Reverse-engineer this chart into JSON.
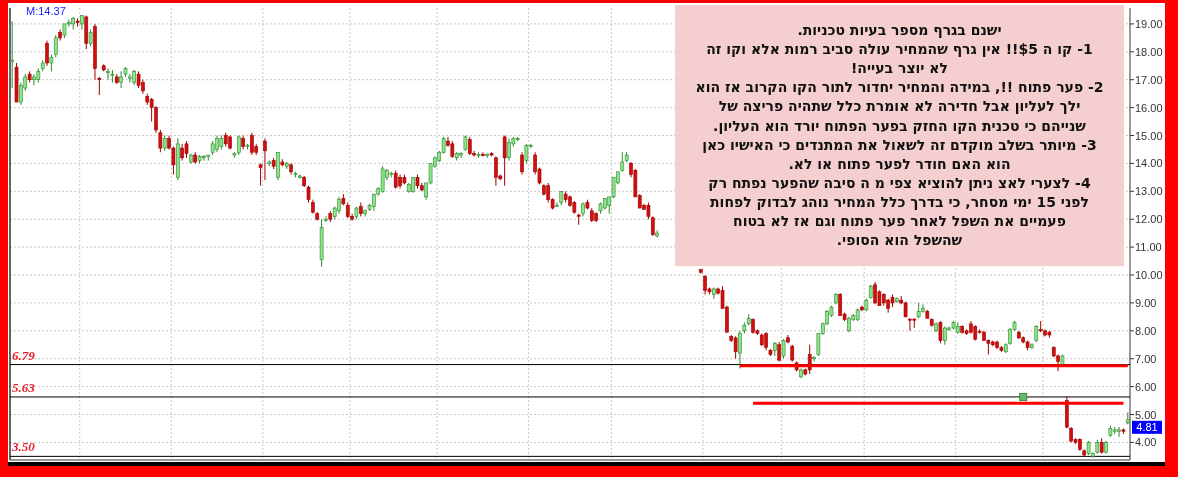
{
  "chart_data": {
    "type": "candlestick",
    "categories": [
      null,
      null,
      null,
      null,
      null,
      null,
      null,
      null,
      null,
      null,
      null,
      null,
      null,
      null,
      null,
      null,
      null,
      null,
      null,
      null,
      null,
      null,
      null,
      null,
      null,
      null,
      null,
      null,
      null,
      null,
      null,
      null,
      null,
      null,
      null,
      null,
      null,
      null,
      null,
      null,
      null,
      null,
      null,
      null,
      null,
      null,
      null,
      null,
      null,
      null,
      null,
      null,
      null,
      null,
      null,
      null,
      null,
      null,
      null,
      null,
      null,
      null,
      null,
      null,
      null,
      null,
      null,
      null,
      null,
      null,
      null,
      null,
      null,
      null,
      null,
      null,
      null,
      null,
      null,
      null,
      null,
      null,
      null,
      null,
      null,
      null,
      null,
      null,
      null,
      null,
      null,
      null,
      null,
      null,
      null,
      null,
      null,
      null,
      null,
      null,
      null,
      null,
      null,
      null,
      null,
      null,
      null,
      null,
      null,
      null,
      null,
      null,
      null,
      null,
      null,
      null,
      null,
      null,
      null,
      null,
      null,
      null,
      null,
      null,
      null,
      null,
      null,
      null,
      null,
      null,
      null,
      null,
      null,
      null,
      null,
      null,
      null,
      null,
      null,
      null,
      null,
      null,
      null,
      null,
      null,
      null,
      null,
      null,
      null,
      null,
      null,
      null,
      null,
      null,
      null,
      null,
      null,
      null,
      null,
      null,
      null,
      null,
      null,
      null,
      null,
      null,
      null,
      null,
      null,
      null,
      null,
      null,
      null,
      null,
      null,
      null,
      null,
      null,
      null,
      null,
      null,
      null,
      null,
      null,
      null,
      null,
      null,
      null,
      null,
      null,
      null,
      null,
      null,
      null,
      null,
      null,
      null,
      null,
      null,
      null,
      null,
      null,
      null,
      null,
      null,
      null,
      null,
      null,
      null,
      null,
      null,
      null,
      null,
      null,
      null,
      null,
      null,
      null,
      null,
      null,
      null,
      null,
      null,
      null,
      null,
      null,
      null,
      null,
      null,
      null,
      null,
      null,
      null,
      null,
      null,
      null,
      null,
      null,
      null,
      null,
      null,
      null,
      null,
      null,
      null,
      null,
      null,
      null,
      null,
      null,
      null,
      null,
      null,
      null,
      null,
      null,
      null
    ],
    "ohlc": [
      [
        17.7,
        19.1,
        16.7,
        17.7
      ],
      [
        17.45,
        17.6,
        16.2,
        16.2
      ],
      [
        16.2,
        16.9,
        16.1,
        16.8
      ],
      [
        16.7,
        17.2,
        16.6,
        17.1
      ],
      [
        17.2,
        17.3,
        16.9,
        17.0
      ],
      [
        17.0,
        17.2,
        16.8,
        17.1
      ],
      [
        17.0,
        17.4,
        16.9,
        17.3
      ],
      [
        17.4,
        17.7,
        17.3,
        17.6
      ],
      [
        18.3,
        18.4,
        17.5,
        17.6
      ],
      [
        17.6,
        17.9,
        17.3,
        17.8
      ],
      [
        17.9,
        18.6,
        17.8,
        18.5
      ],
      [
        18.7,
        18.8,
        18.4,
        18.5
      ],
      [
        18.6,
        19.0,
        18.5,
        19.0
      ],
      [
        19.0,
        19.15,
        18.9,
        19.05
      ],
      [
        19.0,
        19.25,
        18.8,
        19.2
      ],
      [
        19.1,
        19.2,
        18.9,
        19.05
      ],
      [
        19.0,
        19.3,
        18.8,
        19.3
      ],
      [
        19.25,
        19.3,
        18.1,
        18.3
      ],
      [
        18.3,
        18.8,
        18.2,
        18.7
      ],
      [
        18.9,
        19.0,
        17.0,
        17.4
      ],
      [
        17.05,
        17.1,
        16.45,
        17.0
      ],
      [
        17.5,
        17.55,
        17.3,
        17.35
      ],
      [
        17.25,
        17.4,
        17.0,
        17.3
      ],
      [
        17.15,
        17.35,
        16.9,
        17.2
      ],
      [
        17.1,
        17.2,
        16.85,
        16.9
      ],
      [
        16.9,
        17.3,
        16.7,
        17.1
      ],
      [
        17.2,
        17.45,
        17.1,
        17.4
      ],
      [
        17.05,
        17.2,
        16.9,
        17.1
      ],
      [
        16.9,
        17.35,
        16.8,
        17.3
      ],
      [
        17.2,
        17.3,
        16.7,
        16.8
      ],
      [
        16.9,
        17.0,
        16.5,
        16.6
      ],
      [
        16.4,
        16.5,
        16.1,
        16.2
      ],
      [
        16.3,
        16.35,
        15.5,
        16.0
      ],
      [
        16.0,
        16.05,
        15.1,
        15.2
      ],
      [
        15.1,
        15.2,
        14.4,
        14.55
      ],
      [
        14.55,
        15.0,
        14.45,
        14.9
      ],
      [
        14.9,
        15.0,
        14.5,
        14.55
      ],
      [
        14.55,
        14.6,
        13.6,
        13.95
      ],
      [
        13.5,
        14.9,
        13.4,
        14.7
      ],
      [
        14.55,
        14.7,
        14.1,
        14.2
      ],
      [
        14.7,
        14.8,
        14.2,
        14.35
      ],
      [
        14.05,
        14.35,
        14.0,
        14.3
      ],
      [
        14.3,
        14.4,
        14.0,
        14.05
      ],
      [
        14.1,
        14.3,
        14.0,
        14.25
      ],
      [
        14.2,
        14.3,
        14.1,
        14.25
      ],
      [
        14.25,
        14.3,
        14.1,
        14.3
      ],
      [
        14.4,
        14.8,
        14.3,
        14.7
      ],
      [
        14.5,
        15.0,
        14.4,
        14.9
      ],
      [
        14.6,
        15.0,
        14.5,
        14.9
      ],
      [
        15.0,
        15.1,
        14.6,
        14.7
      ],
      [
        14.95,
        15.0,
        14.5,
        14.55
      ],
      [
        14.3,
        14.4,
        14.2,
        14.35
      ],
      [
        14.4,
        15.0,
        14.3,
        14.95
      ],
      [
        14.9,
        15.0,
        14.5,
        14.6
      ],
      [
        14.6,
        14.7,
        14.5,
        14.65
      ],
      [
        15.0,
        15.1,
        14.3,
        14.4
      ],
      [
        14.6,
        14.7,
        14.3,
        14.4
      ],
      [
        13.95,
        14.0,
        13.2,
        13.85
      ],
      [
        14.8,
        14.9,
        13.4,
        14.45
      ],
      [
        14.0,
        14.1,
        13.9,
        14.05
      ],
      [
        14.1,
        14.2,
        13.8,
        13.9
      ],
      [
        13.5,
        14.4,
        13.4,
        14.4
      ],
      [
        14.05,
        14.15,
        13.9,
        13.95
      ],
      [
        13.9,
        14.05,
        13.8,
        14.0
      ],
      [
        13.95,
        14.0,
        13.6,
        13.7
      ],
      [
        13.6,
        13.7,
        13.5,
        13.65
      ],
      [
        13.5,
        13.6,
        13.45,
        13.55
      ],
      [
        13.5,
        13.55,
        13.15,
        13.2
      ],
      [
        13.15,
        13.2,
        12.6,
        12.7
      ],
      [
        12.6,
        12.7,
        12.2,
        12.25
      ],
      [
        12.2,
        12.25,
        11.95,
        12.0
      ],
      [
        10.55,
        12.0,
        10.3,
        11.7
      ],
      [
        11.95,
        12.1,
        11.9,
        12.0
      ],
      [
        12.2,
        12.3,
        11.9,
        12.0
      ],
      [
        12.1,
        12.45,
        12.0,
        12.4
      ],
      [
        12.3,
        12.8,
        12.2,
        12.7
      ],
      [
        12.75,
        12.9,
        12.5,
        12.55
      ],
      [
        12.5,
        12.6,
        12.05,
        12.1
      ],
      [
        12.1,
        12.2,
        11.95,
        12.0
      ],
      [
        12.1,
        12.45,
        12.0,
        12.4
      ],
      [
        12.45,
        12.6,
        12.1,
        12.2
      ],
      [
        12.2,
        12.35,
        12.1,
        12.3
      ],
      [
        12.35,
        12.55,
        12.3,
        12.5
      ],
      [
        12.45,
        12.9,
        12.3,
        12.9
      ],
      [
        12.9,
        13.15,
        12.85,
        13.1
      ],
      [
        13.0,
        13.9,
        12.95,
        13.8
      ],
      [
        13.5,
        13.8,
        13.4,
        13.75
      ],
      [
        13.6,
        13.7,
        13.5,
        13.65
      ],
      [
        13.65,
        13.75,
        13.1,
        13.15
      ],
      [
        13.5,
        13.6,
        13.1,
        13.2
      ],
      [
        13.5,
        13.6,
        13.25,
        13.3
      ],
      [
        13.0,
        13.3,
        12.95,
        13.25
      ],
      [
        13.0,
        13.5,
        12.95,
        13.5
      ],
      [
        13.5,
        13.6,
        13.1,
        13.2
      ],
      [
        13.2,
        13.3,
        13.0,
        13.05
      ],
      [
        12.8,
        13.3,
        12.7,
        13.3
      ],
      [
        13.3,
        14.0,
        13.25,
        14.0
      ],
      [
        13.9,
        14.25,
        13.85,
        14.2
      ],
      [
        14.1,
        14.45,
        14.05,
        14.4
      ],
      [
        14.4,
        14.95,
        14.35,
        14.9
      ],
      [
        14.8,
        14.95,
        14.6,
        14.65
      ],
      [
        14.7,
        14.8,
        14.2,
        14.25
      ],
      [
        14.2,
        14.4,
        14.1,
        14.35
      ],
      [
        14.3,
        14.4,
        14.2,
        14.35
      ],
      [
        14.5,
        15.0,
        14.45,
        14.95
      ],
      [
        14.85,
        14.95,
        14.3,
        14.35
      ],
      [
        14.35,
        14.45,
        14.25,
        14.3
      ],
      [
        14.28,
        14.4,
        14.2,
        14.32
      ],
      [
        14.32,
        14.4,
        14.25,
        14.28
      ],
      [
        14.28,
        14.35,
        14.2,
        14.33
      ],
      [
        14.35,
        14.4,
        14.25,
        14.3
      ],
      [
        14.2,
        14.25,
        13.2,
        13.5
      ],
      [
        13.55,
        13.6,
        13.4,
        13.45
      ],
      [
        14.95,
        15.0,
        13.2,
        14.2
      ],
      [
        14.2,
        14.9,
        14.1,
        14.75
      ],
      [
        14.7,
        14.95,
        14.6,
        14.9
      ],
      [
        14.85,
        14.95,
        14.8,
        14.9
      ],
      [
        14.3,
        14.4,
        13.6,
        13.7
      ],
      [
        14.1,
        14.7,
        14.0,
        14.65
      ],
      [
        14.6,
        14.7,
        14.55,
        14.65
      ],
      [
        14.3,
        14.4,
        13.6,
        13.7
      ],
      [
        13.8,
        13.85,
        13.25,
        13.3
      ],
      [
        13.2,
        13.25,
        12.85,
        12.9
      ],
      [
        13.2,
        13.3,
        12.6,
        12.7
      ],
      [
        12.7,
        12.75,
        12.35,
        12.4
      ],
      [
        12.5,
        12.6,
        12.45,
        12.5
      ],
      [
        12.6,
        13.0,
        12.5,
        13.0
      ],
      [
        12.9,
        13.0,
        12.6,
        12.7
      ],
      [
        12.8,
        12.85,
        12.45,
        12.5
      ],
      [
        12.6,
        12.65,
        12.2,
        12.25
      ],
      [
        12.15,
        12.2,
        11.8,
        12.1
      ],
      [
        12.2,
        12.6,
        12.1,
        12.55
      ],
      [
        12.6,
        12.7,
        12.35,
        12.4
      ],
      [
        12.3,
        12.4,
        11.9,
        11.95
      ],
      [
        12.2,
        12.25,
        11.9,
        11.95
      ],
      [
        12.3,
        12.6,
        12.2,
        12.55
      ],
      [
        12.4,
        12.75,
        12.35,
        12.75
      ],
      [
        12.5,
        12.8,
        12.2,
        12.8
      ],
      [
        12.8,
        13.5,
        12.75,
        13.5
      ],
      [
        13.3,
        13.7,
        13.25,
        13.7
      ],
      [
        13.75,
        14.4,
        13.7,
        14.05
      ],
      [
        14.1,
        14.4,
        14.05,
        14.3
      ],
      [
        14.0,
        14.05,
        13.5,
        13.6
      ],
      [
        13.75,
        13.8,
        12.8,
        12.8
      ],
      [
        12.85,
        12.9,
        12.4,
        12.4
      ],
      [
        12.5,
        12.55,
        12.35,
        12.35
      ],
      [
        12.5,
        12.6,
        12.0,
        12.1
      ],
      [
        12.05,
        12.1,
        11.4,
        11.45
      ],
      [
        11.4,
        11.6,
        11.35,
        11.5
      ],
      null,
      null,
      null,
      null,
      null,
      null,
      null,
      null,
      null,
      [
        10.2,
        10.2,
        10.05,
        10.1
      ],
      [
        9.95,
        10.0,
        9.3,
        9.45
      ],
      [
        9.5,
        9.55,
        9.3,
        9.4
      ],
      [
        9.3,
        9.55,
        9.15,
        9.5
      ],
      [
        9.5,
        9.55,
        9.3,
        9.35
      ],
      [
        9.45,
        9.6,
        8.8,
        8.8
      ],
      [
        8.85,
        8.9,
        7.95,
        7.95
      ],
      [
        7.8,
        7.85,
        7.6,
        7.65
      ],
      [
        7.75,
        7.8,
        7.0,
        7.25
      ],
      [
        7.2,
        8.0,
        6.65,
        7.9
      ],
      [
        8.0,
        8.3,
        7.9,
        8.2
      ],
      [
        8.25,
        8.6,
        8.2,
        8.45
      ],
      [
        8.4,
        8.45,
        7.9,
        7.95
      ],
      [
        8.0,
        8.05,
        7.85,
        7.9
      ],
      [
        7.85,
        7.9,
        7.45,
        7.5
      ],
      [
        7.9,
        7.95,
        7.3,
        7.4
      ],
      [
        7.3,
        7.35,
        7.1,
        7.15
      ],
      [
        7.3,
        7.6,
        7.1,
        7.55
      ],
      [
        7.5,
        7.6,
        6.9,
        6.95
      ],
      [
        7.1,
        7.7,
        7.0,
        7.65
      ],
      [
        7.75,
        7.85,
        7.55,
        7.6
      ],
      [
        7.45,
        7.5,
        6.9,
        6.95
      ],
      [
        6.85,
        6.9,
        6.55,
        6.6
      ],
      [
        6.35,
        6.65,
        6.3,
        6.6
      ],
      [
        6.6,
        6.65,
        6.4,
        6.45
      ],
      [
        7.15,
        7.5,
        6.45,
        6.6
      ],
      [
        7.0,
        7.1,
        6.9,
        7.05
      ],
      [
        7.15,
        7.9,
        7.1,
        7.9
      ],
      [
        7.9,
        8.3,
        7.85,
        8.25
      ],
      [
        8.25,
        8.75,
        8.2,
        8.7
      ],
      [
        8.55,
        8.9,
        8.5,
        8.85
      ],
      [
        9.0,
        9.35,
        8.95,
        9.3
      ],
      [
        9.3,
        9.35,
        8.55,
        8.55
      ],
      [
        8.6,
        8.65,
        8.35,
        8.4
      ],
      [
        8.0,
        8.5,
        7.95,
        8.45
      ],
      [
        8.4,
        8.6,
        8.35,
        8.55
      ],
      [
        8.4,
        8.8,
        8.35,
        8.75
      ],
      [
        8.85,
        8.9,
        8.7,
        8.75
      ],
      [
        8.75,
        9.15,
        8.7,
        9.1
      ],
      [
        9.2,
        9.65,
        9.15,
        9.6
      ],
      [
        9.65,
        9.75,
        8.95,
        9.0
      ],
      [
        9.4,
        9.45,
        8.9,
        8.9
      ],
      [
        9.3,
        9.35,
        8.9,
        9.0
      ],
      [
        9.1,
        9.15,
        8.65,
        8.8
      ],
      [
        9.2,
        9.3,
        8.85,
        9.0
      ],
      [
        9.05,
        9.2,
        9.0,
        9.15
      ],
      [
        9.1,
        9.25,
        8.95,
        9.0
      ],
      [
        9.0,
        9.05,
        8.5,
        8.5
      ],
      [
        8.42,
        8.45,
        8.0,
        8.38
      ],
      [
        8.42,
        8.45,
        8.1,
        8.38
      ],
      [
        8.5,
        9.0,
        8.45,
        8.7
      ],
      [
        8.7,
        8.95,
        8.65,
        8.8
      ],
      [
        8.7,
        8.75,
        8.45,
        8.45
      ],
      [
        8.4,
        8.45,
        8.15,
        8.2
      ],
      [
        8.0,
        8.3,
        7.95,
        8.25
      ],
      [
        8.3,
        8.35,
        7.55,
        7.65
      ],
      [
        7.65,
        8.15,
        7.5,
        8.1
      ],
      [
        8.05,
        8.15,
        8.0,
        8.1
      ],
      [
        8.1,
        8.35,
        8.05,
        8.3
      ],
      [
        7.95,
        8.3,
        7.9,
        8.15
      ],
      [
        8.15,
        8.2,
        7.9,
        7.95
      ],
      [
        8.0,
        8.05,
        7.85,
        7.9
      ],
      [
        8.25,
        8.35,
        7.9,
        7.95
      ],
      [
        8.15,
        8.2,
        7.65,
        7.7
      ],
      [
        7.98,
        8.05,
        7.9,
        7.95
      ],
      [
        7.95,
        8.0,
        7.65,
        7.65
      ],
      [
        7.65,
        7.7,
        7.15,
        7.55
      ],
      [
        7.6,
        7.65,
        7.45,
        7.5
      ],
      [
        7.6,
        7.65,
        7.35,
        7.4
      ],
      [
        7.4,
        7.45,
        7.25,
        7.3
      ],
      [
        7.25,
        7.55,
        7.2,
        7.5
      ],
      [
        7.55,
        8.1,
        7.5,
        8.05
      ],
      [
        8.05,
        8.35,
        8.0,
        8.3
      ],
      [
        7.95,
        8.0,
        7.7,
        7.75
      ],
      [
        7.75,
        7.8,
        7.55,
        7.6
      ],
      [
        7.6,
        7.65,
        7.3,
        7.4
      ],
      [
        7.4,
        7.55,
        7.35,
        7.5
      ],
      [
        7.65,
        8.2,
        7.6,
        8.15
      ],
      [
        8.05,
        8.35,
        7.95,
        8.0
      ],
      [
        8.0,
        8.05,
        7.8,
        7.85
      ],
      [
        7.95,
        8.0,
        7.75,
        7.85
      ],
      [
        7.4,
        7.45,
        7.05,
        7.1
      ],
      [
        7.1,
        7.15,
        6.55,
        6.9
      ],
      [
        6.8,
        7.15,
        6.75,
        7.1
      ],
      [
        5.5,
        5.65,
        4.5,
        4.55
      ],
      [
        4.5,
        4.55,
        4.0,
        4.05
      ],
      [
        4.1,
        4.15,
        3.95,
        4.0
      ],
      [
        4.1,
        4.15,
        3.7,
        3.75
      ],
      [
        3.7,
        3.75,
        3.5,
        3.55
      ],
      [
        3.6,
        4.05,
        3.55,
        4.0
      ],
      [
        3.5,
        3.65,
        3.45,
        3.6
      ],
      [
        3.65,
        4.1,
        3.6,
        4.0
      ],
      [
        4.0,
        4.15,
        3.6,
        3.65
      ],
      [
        3.65,
        4.05,
        3.6,
        4.0
      ],
      [
        4.25,
        4.6,
        4.2,
        4.5
      ],
      [
        4.4,
        4.55,
        4.3,
        4.45
      ],
      [
        4.4,
        4.55,
        4.2,
        4.45
      ],
      [
        4.45,
        4.5,
        4.3,
        4.4
      ],
      [
        4.7,
        5.08,
        4.65,
        4.81
      ]
    ],
    "series": [
      {
        "type": "line",
        "color": "#ff0000",
        "values": [
          null,
          null,
          null,
          null,
          null,
          null,
          null,
          null,
          null,
          null,
          null,
          null,
          null,
          null,
          null,
          null,
          null,
          null,
          null,
          null,
          null,
          null,
          null,
          null,
          null,
          null,
          null,
          null,
          null,
          null,
          null,
          null,
          null,
          null,
          null,
          null,
          null,
          null,
          null,
          null,
          null,
          null,
          null,
          null,
          null,
          null,
          null,
          null,
          null,
          null,
          null,
          null,
          null,
          null,
          null,
          null,
          null,
          null,
          null,
          null,
          null,
          null,
          null,
          null,
          null,
          null,
          null,
          null,
          null,
          null,
          null,
          null,
          null,
          null,
          null,
          null,
          null,
          null,
          null,
          null,
          null,
          null,
          null,
          null,
          null,
          null,
          null,
          null,
          null,
          null,
          null,
          null,
          null,
          null,
          null,
          null,
          null,
          null,
          null,
          null,
          null,
          null,
          null,
          null,
          null,
          null,
          null,
          null,
          null,
          null,
          null,
          null,
          null,
          null,
          null,
          null,
          null,
          null,
          null,
          null,
          null,
          null,
          null,
          null,
          null,
          null,
          null,
          null,
          null,
          null,
          null,
          null,
          null,
          null,
          null,
          null,
          null,
          null,
          null,
          null,
          null,
          null,
          null,
          null,
          null,
          null,
          null,
          null,
          null,
          null,
          null,
          null,
          null,
          null,
          null,
          null,
          null,
          null,
          null,
          null,
          null,
          null,
          null,
          null,
          null,
          null,
          null,
          6.75,
          6.75,
          6.75,
          6.75,
          6.75,
          6.75,
          6.75,
          6.75,
          6.75,
          6.75,
          6.75,
          6.75,
          6.75,
          6.75,
          6.75,
          6.75,
          6.75,
          6.75,
          6.75,
          6.75,
          6.75,
          6.75,
          6.75,
          6.75,
          6.75,
          6.75,
          6.75,
          6.75,
          6.75,
          6.75,
          6.75,
          6.75,
          6.75,
          6.75,
          6.75,
          6.75,
          6.75,
          6.75,
          6.75,
          6.75,
          6.75,
          6.75,
          6.75,
          6.75,
          6.75,
          6.75,
          6.75,
          6.75,
          6.75,
          6.75,
          6.75,
          6.75,
          6.75,
          6.75,
          6.75,
          6.75,
          6.75,
          6.75,
          6.75,
          6.75,
          6.75,
          6.75,
          6.75,
          6.75,
          6.75,
          6.75,
          6.75,
          6.75,
          6.75,
          6.75,
          6.75,
          6.75,
          6.75,
          6.75,
          6.75,
          6.75,
          6.75,
          6.75,
          6.75,
          6.75,
          6.75,
          6.75,
          6.75,
          6.75,
          6.75,
          6.75,
          6.75,
          6.75,
          6.75,
          6.75
        ]
      },
      {
        "type": "line",
        "color": "#ff0000",
        "values": [
          null,
          null,
          null,
          null,
          null,
          null,
          null,
          null,
          null,
          null,
          null,
          null,
          null,
          null,
          null,
          null,
          null,
          null,
          null,
          null,
          null,
          null,
          null,
          null,
          null,
          null,
          null,
          null,
          null,
          null,
          null,
          null,
          null,
          null,
          null,
          null,
          null,
          null,
          null,
          null,
          null,
          null,
          null,
          null,
          null,
          null,
          null,
          null,
          null,
          null,
          null,
          null,
          null,
          null,
          null,
          null,
          null,
          null,
          null,
          null,
          null,
          null,
          null,
          null,
          null,
          null,
          null,
          null,
          null,
          null,
          null,
          null,
          null,
          null,
          null,
          null,
          null,
          null,
          null,
          null,
          null,
          null,
          null,
          null,
          null,
          null,
          null,
          null,
          null,
          null,
          null,
          null,
          null,
          null,
          null,
          null,
          null,
          null,
          null,
          null,
          null,
          null,
          null,
          null,
          null,
          null,
          null,
          null,
          null,
          null,
          null,
          null,
          null,
          null,
          null,
          null,
          null,
          null,
          null,
          null,
          null,
          null,
          null,
          null,
          null,
          null,
          null,
          null,
          null,
          null,
          null,
          null,
          null,
          null,
          null,
          null,
          null,
          null,
          null,
          null,
          null,
          null,
          null,
          null,
          null,
          null,
          null,
          null,
          null,
          null,
          null,
          null,
          null,
          null,
          null,
          null,
          null,
          null,
          null,
          null,
          null,
          null,
          null,
          null,
          null,
          null,
          null,
          null,
          null,
          null,
          5.4,
          5.4,
          5.4,
          5.4,
          5.4,
          5.4,
          5.4,
          5.4,
          5.4,
          5.4,
          5.4,
          5.4,
          5.4,
          5.4,
          5.4,
          5.4,
          5.4,
          5.4,
          5.4,
          5.4,
          5.4,
          5.4,
          5.4,
          5.4,
          5.4,
          5.4,
          5.4,
          5.4,
          5.4,
          5.4,
          5.4,
          5.4,
          5.4,
          5.4,
          5.4,
          5.4,
          5.4,
          5.4,
          5.4,
          5.4,
          5.4,
          5.4,
          5.4,
          5.4,
          5.4,
          5.4,
          5.4,
          5.4,
          5.4,
          5.4,
          5.4,
          5.4,
          5.4,
          5.4,
          5.4,
          5.4,
          5.4,
          5.4,
          5.4,
          5.4,
          5.4,
          5.4,
          5.4,
          5.4,
          5.4,
          5.4,
          5.4,
          5.4,
          5.4,
          5.4,
          5.4,
          5.4,
          5.4,
          5.4,
          5.4,
          5.4,
          5.4,
          5.4,
          5.4,
          5.4,
          5.4,
          5.4,
          5.4,
          5.4,
          5.4,
          5.4,
          null
        ]
      },
      {
        "type": "scatter",
        "marker": "square",
        "color": "#66bb66",
        "values": [
          null,
          null,
          null,
          null,
          null,
          null,
          null,
          null,
          null,
          null,
          null,
          null,
          null,
          null,
          null,
          null,
          null,
          null,
          null,
          null,
          null,
          null,
          null,
          null,
          null,
          null,
          null,
          null,
          null,
          null,
          null,
          null,
          null,
          null,
          null,
          null,
          null,
          null,
          null,
          null,
          null,
          null,
          null,
          null,
          null,
          null,
          null,
          null,
          null,
          null,
          null,
          null,
          null,
          null,
          null,
          null,
          null,
          null,
          null,
          null,
          null,
          null,
          null,
          null,
          null,
          null,
          null,
          null,
          null,
          null,
          null,
          null,
          null,
          null,
          null,
          null,
          null,
          null,
          null,
          null,
          null,
          null,
          null,
          null,
          null,
          null,
          null,
          null,
          null,
          null,
          null,
          null,
          null,
          null,
          null,
          null,
          null,
          null,
          null,
          null,
          null,
          null,
          null,
          null,
          null,
          null,
          null,
          null,
          null,
          null,
          null,
          null,
          null,
          null,
          null,
          null,
          null,
          null,
          null,
          null,
          null,
          null,
          null,
          null,
          null,
          null,
          null,
          null,
          null,
          null,
          null,
          null,
          null,
          null,
          null,
          null,
          null,
          null,
          null,
          null,
          null,
          null,
          null,
          null,
          null,
          null,
          null,
          null,
          null,
          null,
          null,
          null,
          null,
          null,
          null,
          null,
          null,
          null,
          null,
          null,
          null,
          null,
          null,
          null,
          null,
          null,
          null,
          null,
          null,
          null,
          null,
          null,
          null,
          null,
          null,
          null,
          null,
          null,
          null,
          null,
          null,
          null,
          null,
          null,
          null,
          null,
          null,
          null,
          null,
          null,
          null,
          null,
          null,
          null,
          null,
          null,
          null,
          null,
          null,
          null,
          null,
          null,
          null,
          null,
          null,
          null,
          null,
          null,
          null,
          null,
          null,
          null,
          null,
          null,
          null,
          null,
          null,
          null,
          null,
          null,
          null,
          null,
          null,
          null,
          null,
          null,
          null,
          null,
          null,
          null,
          null,
          null,
          5.63,
          null,
          null,
          null,
          null,
          null,
          null,
          null,
          null,
          null,
          null,
          null,
          null,
          null,
          null,
          null,
          null,
          null,
          null,
          null,
          null,
          null,
          null,
          null,
          null
        ]
      }
    ],
    "ylim": [
      3.37,
      19.57
    ],
    "yticks": [
      {
        "value": 4,
        "label": "4.00"
      },
      {
        "value": 5,
        "label": "5.00"
      },
      {
        "value": 6,
        "label": "6.00"
      },
      {
        "value": 7,
        "label": "7.00"
      },
      {
        "value": 8,
        "label": "8.00"
      },
      {
        "value": 9,
        "label": "9.00"
      },
      {
        "value": 10,
        "label": "10.00"
      },
      {
        "value": 11,
        "label": "11.00"
      },
      {
        "value": 12,
        "label": "12.00"
      },
      {
        "value": 13,
        "label": "13.00"
      },
      {
        "value": 14,
        "label": "14.00"
      },
      {
        "value": 15,
        "label": "15.00"
      },
      {
        "value": 16,
        "label": "16.00"
      },
      {
        "value": 17,
        "label": "17.00"
      },
      {
        "value": 18,
        "label": "18.00"
      },
      {
        "value": 19,
        "label": "19.00"
      }
    ],
    "ref_lines": [
      {
        "axis": "y",
        "value": 6.79,
        "label": "6.79",
        "color": "#000000"
      },
      {
        "axis": "y",
        "value": 5.63,
        "label": "5.63",
        "color": "#000000"
      },
      {
        "axis": "y",
        "value": 3.5,
        "label": "3.50",
        "color": "#000000"
      }
    ],
    "grid": true,
    "tick_labels": "y",
    "annotations": [
      "M:14.37",
      "4.81",
      "ישנם בגרף מספר בעיות טכניות.",
      "1- קו ה $5!! אין גרף שהמחיר עולה סביב רמות אלא וקו זה",
      "לא יוצר בעייה!",
      "2- פער פתוח !!, במידה והמחיר יחדור לתור הקו הקרוב אז הוא",
      "ילך לעליון אבל חדירה לא אומרת כלל שתהיה פריצה של",
      "שנייהם כי טכנית הקו החזק בפער הפתוח יורד הוא העליון.",
      "3- מיותר בשלב מוקדם זה לשאול את המתנדים כי האישיו כאן",
      "הוא האם חודר לפער פתוח או לא.",
      "4- לצערי לאצ ניתן להוציא צפי מ ה סיבה שהפער נפתח רק",
      "לפני 15 ימי מסחר, כי בדרך כלל המחיר נוהג לבדוק לפחות",
      "פעמיים את השפל לאחר פער פתוח וגם אז לא בטוח",
      "שהשפל הוא הסופי."
    ]
  }
}
